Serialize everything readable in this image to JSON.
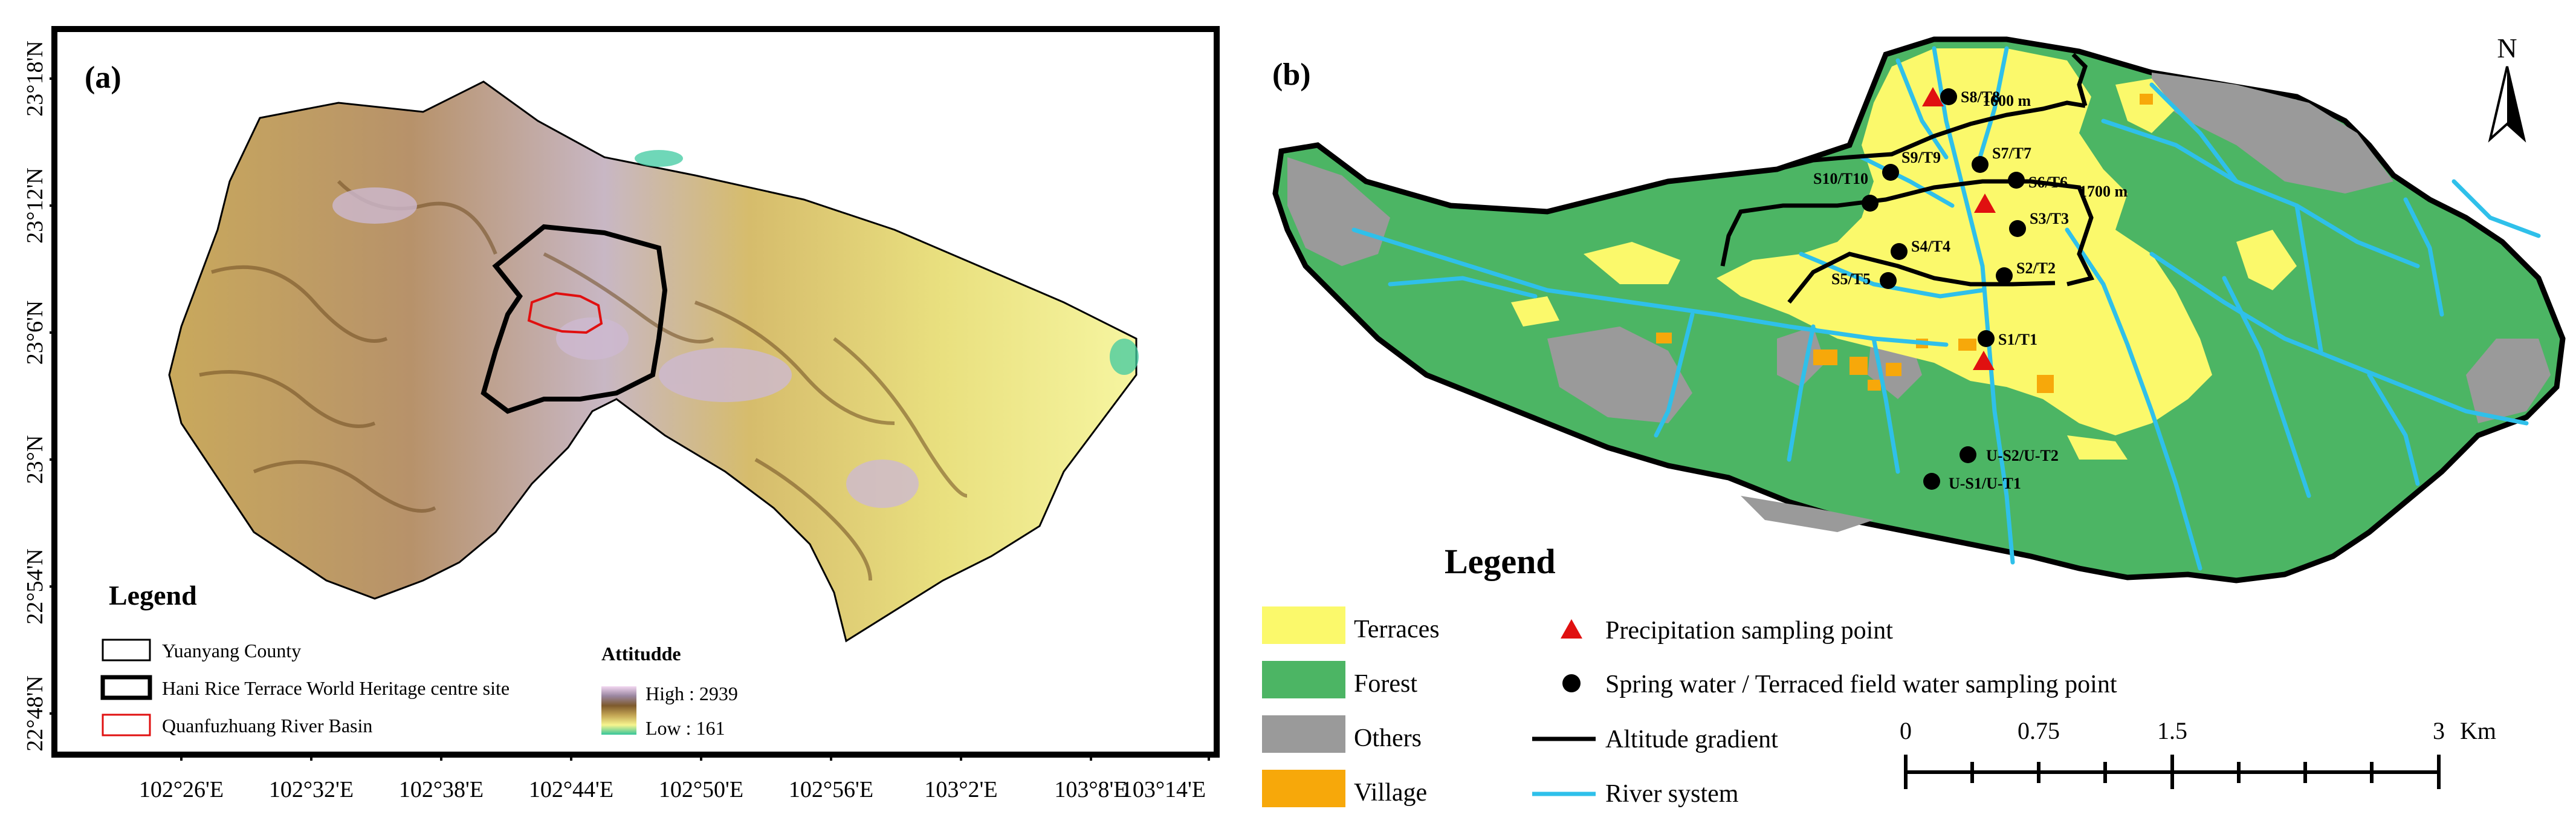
{
  "panel_a": {
    "label": "(a)",
    "lat_ticks": [
      "23°18'N",
      "23°12'N",
      "23°6'N",
      "23°N",
      "22°54'N",
      "22°48'N"
    ],
    "lon_ticks": [
      "102°26'E",
      "102°32'E",
      "102°38'E",
      "102°44'E",
      "102°50'E",
      "102°56'E",
      "103°2'E",
      "103°8'E",
      "103°14'E"
    ],
    "legend_title": "Legend",
    "legend_items": [
      {
        "label": "Yuanyang County",
        "color": "#000000"
      },
      {
        "label": "Hani Rice Terrace World Heritage centre site",
        "color": "#000000"
      },
      {
        "label": "Quanfuzhuang River Basin",
        "color": "#e01010"
      }
    ],
    "elevation": {
      "title": "Attitudde",
      "high": "High : 2939",
      "low": "Low : 161"
    }
  },
  "panel_b": {
    "label": "(b)",
    "north": "N",
    "alt_labels": [
      "1600 m",
      "1700 m"
    ],
    "sample_points": [
      "S8/T8",
      "S9/T9",
      "S7/T7",
      "S10/T10",
      "S6/T6",
      "S3/T3",
      "S4/T4",
      "S2/T2",
      "S5/T5",
      "S1/T1",
      "U-S2/U-T2",
      "U-S1/U-T1"
    ],
    "legend_title": "Legend",
    "legend_items": [
      {
        "label": "Terraces",
        "color": "#fbf96b"
      },
      {
        "label": "Forest",
        "color": "#4cb564"
      },
      {
        "label": "Others",
        "color": "#9a9a9a"
      },
      {
        "label": "Village",
        "color": "#f7a80a"
      },
      {
        "label": "Precipitation sampling point",
        "color": "#e01010"
      },
      {
        "label": "Spring water / Terraced field water sampling point",
        "color": "#000000"
      },
      {
        "label": "Altitude gradient",
        "color": "#000000"
      },
      {
        "label": "River system",
        "color": "#2fc0ea"
      }
    ],
    "scale": {
      "ticks": [
        "0",
        "0.75",
        "1.5",
        "3"
      ],
      "unit": "Km"
    }
  }
}
